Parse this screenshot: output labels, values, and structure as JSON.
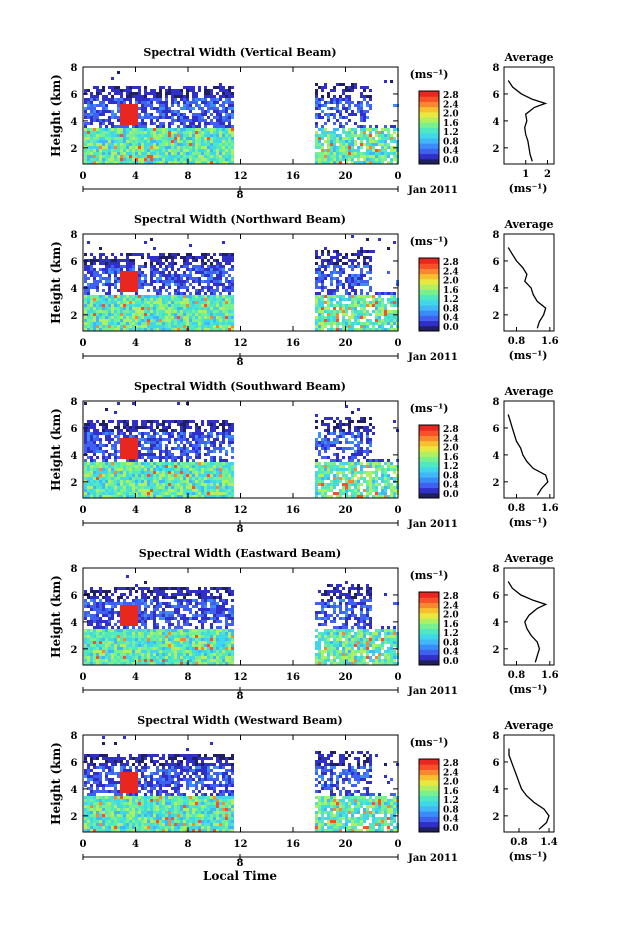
{
  "common": {
    "y_label": "Height (km)",
    "y_ticks": [
      "2",
      "4",
      "6",
      "8"
    ],
    "x_ticks": [
      "0",
      "4",
      "8",
      "12",
      "16",
      "20",
      "0"
    ],
    "date_tick": "8",
    "date_label": "Jan 2011",
    "colorbar_unit": "(ms⁻¹)",
    "avg_title": "Average",
    "avg_xlabel": "(ms⁻¹)",
    "bottom_xlabel": "Local Time",
    "colormap": [
      "#202060",
      "#3030c8",
      "#4060f0",
      "#3a8cf8",
      "#40b8f8",
      "#40d8e8",
      "#50e8c0",
      "#78f090",
      "#b0f060",
      "#e8e840",
      "#f8c030",
      "#f88830",
      "#f85028",
      "#e82820"
    ]
  },
  "panels": [
    {
      "title": "Spectral Width (Vertical Beam)",
      "cbar_ticks": [
        "0.0",
        "0.4",
        "0.8",
        "1.2",
        "1.6",
        "2.0",
        "2.4",
        "2.8"
      ],
      "avg_ticks": [
        "1",
        "2"
      ],
      "avg_range": [
        0,
        2.3
      ]
    },
    {
      "title": "Spectral Width (Northward Beam)",
      "cbar_ticks": [
        "0.0",
        "0.4",
        "0.8",
        "1.2",
        "1.6",
        "2.0",
        "2.4",
        "2.8"
      ],
      "avg_ticks": [
        "0.8",
        "1.6"
      ],
      "avg_range": [
        0.5,
        1.7
      ]
    },
    {
      "title": "Spectral Width (Southward Beam)",
      "cbar_ticks": [
        "0.0",
        "0.4",
        "0.8",
        "1.2",
        "1.6",
        "2.0",
        "2.4",
        "2.8"
      ],
      "avg_ticks": [
        "0.8",
        "1.6"
      ],
      "avg_range": [
        0.5,
        1.7
      ]
    },
    {
      "title": "Spectral Width (Eastward Beam)",
      "cbar_ticks": [
        "0.0",
        "0.4",
        "0.8",
        "1.2",
        "1.6",
        "2.0",
        "2.4",
        "2.8"
      ],
      "avg_ticks": [
        "0.8",
        "1.6"
      ],
      "avg_range": [
        0.5,
        1.7
      ]
    },
    {
      "title": "Spectral Width (Westward Beam)",
      "cbar_ticks": [
        "0.0",
        "0.4",
        "0.8",
        "1.2",
        "1.6",
        "2.0",
        "2.4",
        "2.8"
      ],
      "avg_ticks": [
        "0.8",
        "1.4"
      ],
      "avg_range": [
        0.5,
        1.5
      ]
    }
  ],
  "chart_data": [
    {
      "type": "heatmap",
      "title": "Spectral Width (Vertical Beam)",
      "xlabel": "Local Time",
      "ylabel": "Height (km)",
      "xlim": [
        0,
        24
      ],
      "ylim": [
        0.8,
        8
      ],
      "data_gap_hours": [
        11,
        17.5
      ],
      "colorbar_range": [
        0,
        2.8
      ],
      "profile": {
        "heights": [
          1,
          1.5,
          2,
          2.5,
          3,
          3.5,
          4,
          4.5,
          5,
          5.3,
          5.6,
          6,
          6.5,
          7
        ],
        "values": [
          1.3,
          1.2,
          1.15,
          1.1,
          1.0,
          0.95,
          1.05,
          1.0,
          1.4,
          1.9,
          1.3,
          0.8,
          0.4,
          0.2
        ]
      }
    },
    {
      "type": "heatmap",
      "title": "Spectral Width (Northward Beam)",
      "xlabel": "Local Time",
      "ylabel": "Height (km)",
      "xlim": [
        0,
        24
      ],
      "ylim": [
        0.8,
        8
      ],
      "data_gap_hours": [
        11,
        17.5
      ],
      "colorbar_range": [
        0,
        2.8
      ],
      "profile": {
        "heights": [
          1,
          1.5,
          2,
          2.5,
          3,
          3.5,
          4,
          4.5,
          5,
          5.5,
          6,
          6.5,
          7
        ],
        "values": [
          1.3,
          1.35,
          1.45,
          1.5,
          1.3,
          1.2,
          1.15,
          1.0,
          1.05,
          0.95,
          0.8,
          0.7,
          0.6
        ]
      }
    },
    {
      "type": "heatmap",
      "title": "Spectral Width (Southward Beam)",
      "xlabel": "Local Time",
      "ylabel": "Height (km)",
      "xlim": [
        0,
        24
      ],
      "ylim": [
        0.8,
        8
      ],
      "data_gap_hours": [
        11,
        17.5
      ],
      "colorbar_range": [
        0,
        2.8
      ],
      "profile": {
        "heights": [
          1,
          1.5,
          2,
          2.5,
          3,
          3.5,
          4,
          4.5,
          5,
          5.5,
          6,
          6.5,
          7
        ],
        "values": [
          1.3,
          1.4,
          1.55,
          1.5,
          1.2,
          1.05,
          0.95,
          0.9,
          0.8,
          0.75,
          0.7,
          0.65,
          0.6
        ]
      }
    },
    {
      "type": "heatmap",
      "title": "Spectral Width (Eastward Beam)",
      "xlabel": "Local Time",
      "ylabel": "Height (km)",
      "xlim": [
        0,
        24
      ],
      "ylim": [
        0.8,
        8
      ],
      "data_gap_hours": [
        11,
        17.5
      ],
      "colorbar_range": [
        0,
        2.8
      ],
      "profile": {
        "heights": [
          1,
          1.5,
          2,
          2.5,
          3,
          3.5,
          4,
          4.5,
          5,
          5.3,
          5.6,
          6,
          6.5,
          7
        ],
        "values": [
          1.25,
          1.3,
          1.35,
          1.3,
          1.15,
          1.05,
          1.0,
          1.1,
          1.3,
          1.5,
          1.2,
          0.9,
          0.7,
          0.6
        ]
      }
    },
    {
      "type": "heatmap",
      "title": "Spectral Width (Westward Beam)",
      "xlabel": "Local Time",
      "ylabel": "Height (km)",
      "xlim": [
        0,
        24
      ],
      "ylim": [
        0.8,
        8
      ],
      "data_gap_hours": [
        11,
        17.5
      ],
      "colorbar_range": [
        0,
        2.8
      ],
      "profile": {
        "heights": [
          1,
          1.5,
          2,
          2.5,
          3,
          3.5,
          4,
          4.5,
          5,
          5.5,
          6,
          6.5,
          7
        ],
        "values": [
          1.2,
          1.35,
          1.4,
          1.3,
          1.1,
          0.95,
          0.85,
          0.8,
          0.75,
          0.7,
          0.65,
          0.6,
          0.6
        ]
      }
    }
  ]
}
